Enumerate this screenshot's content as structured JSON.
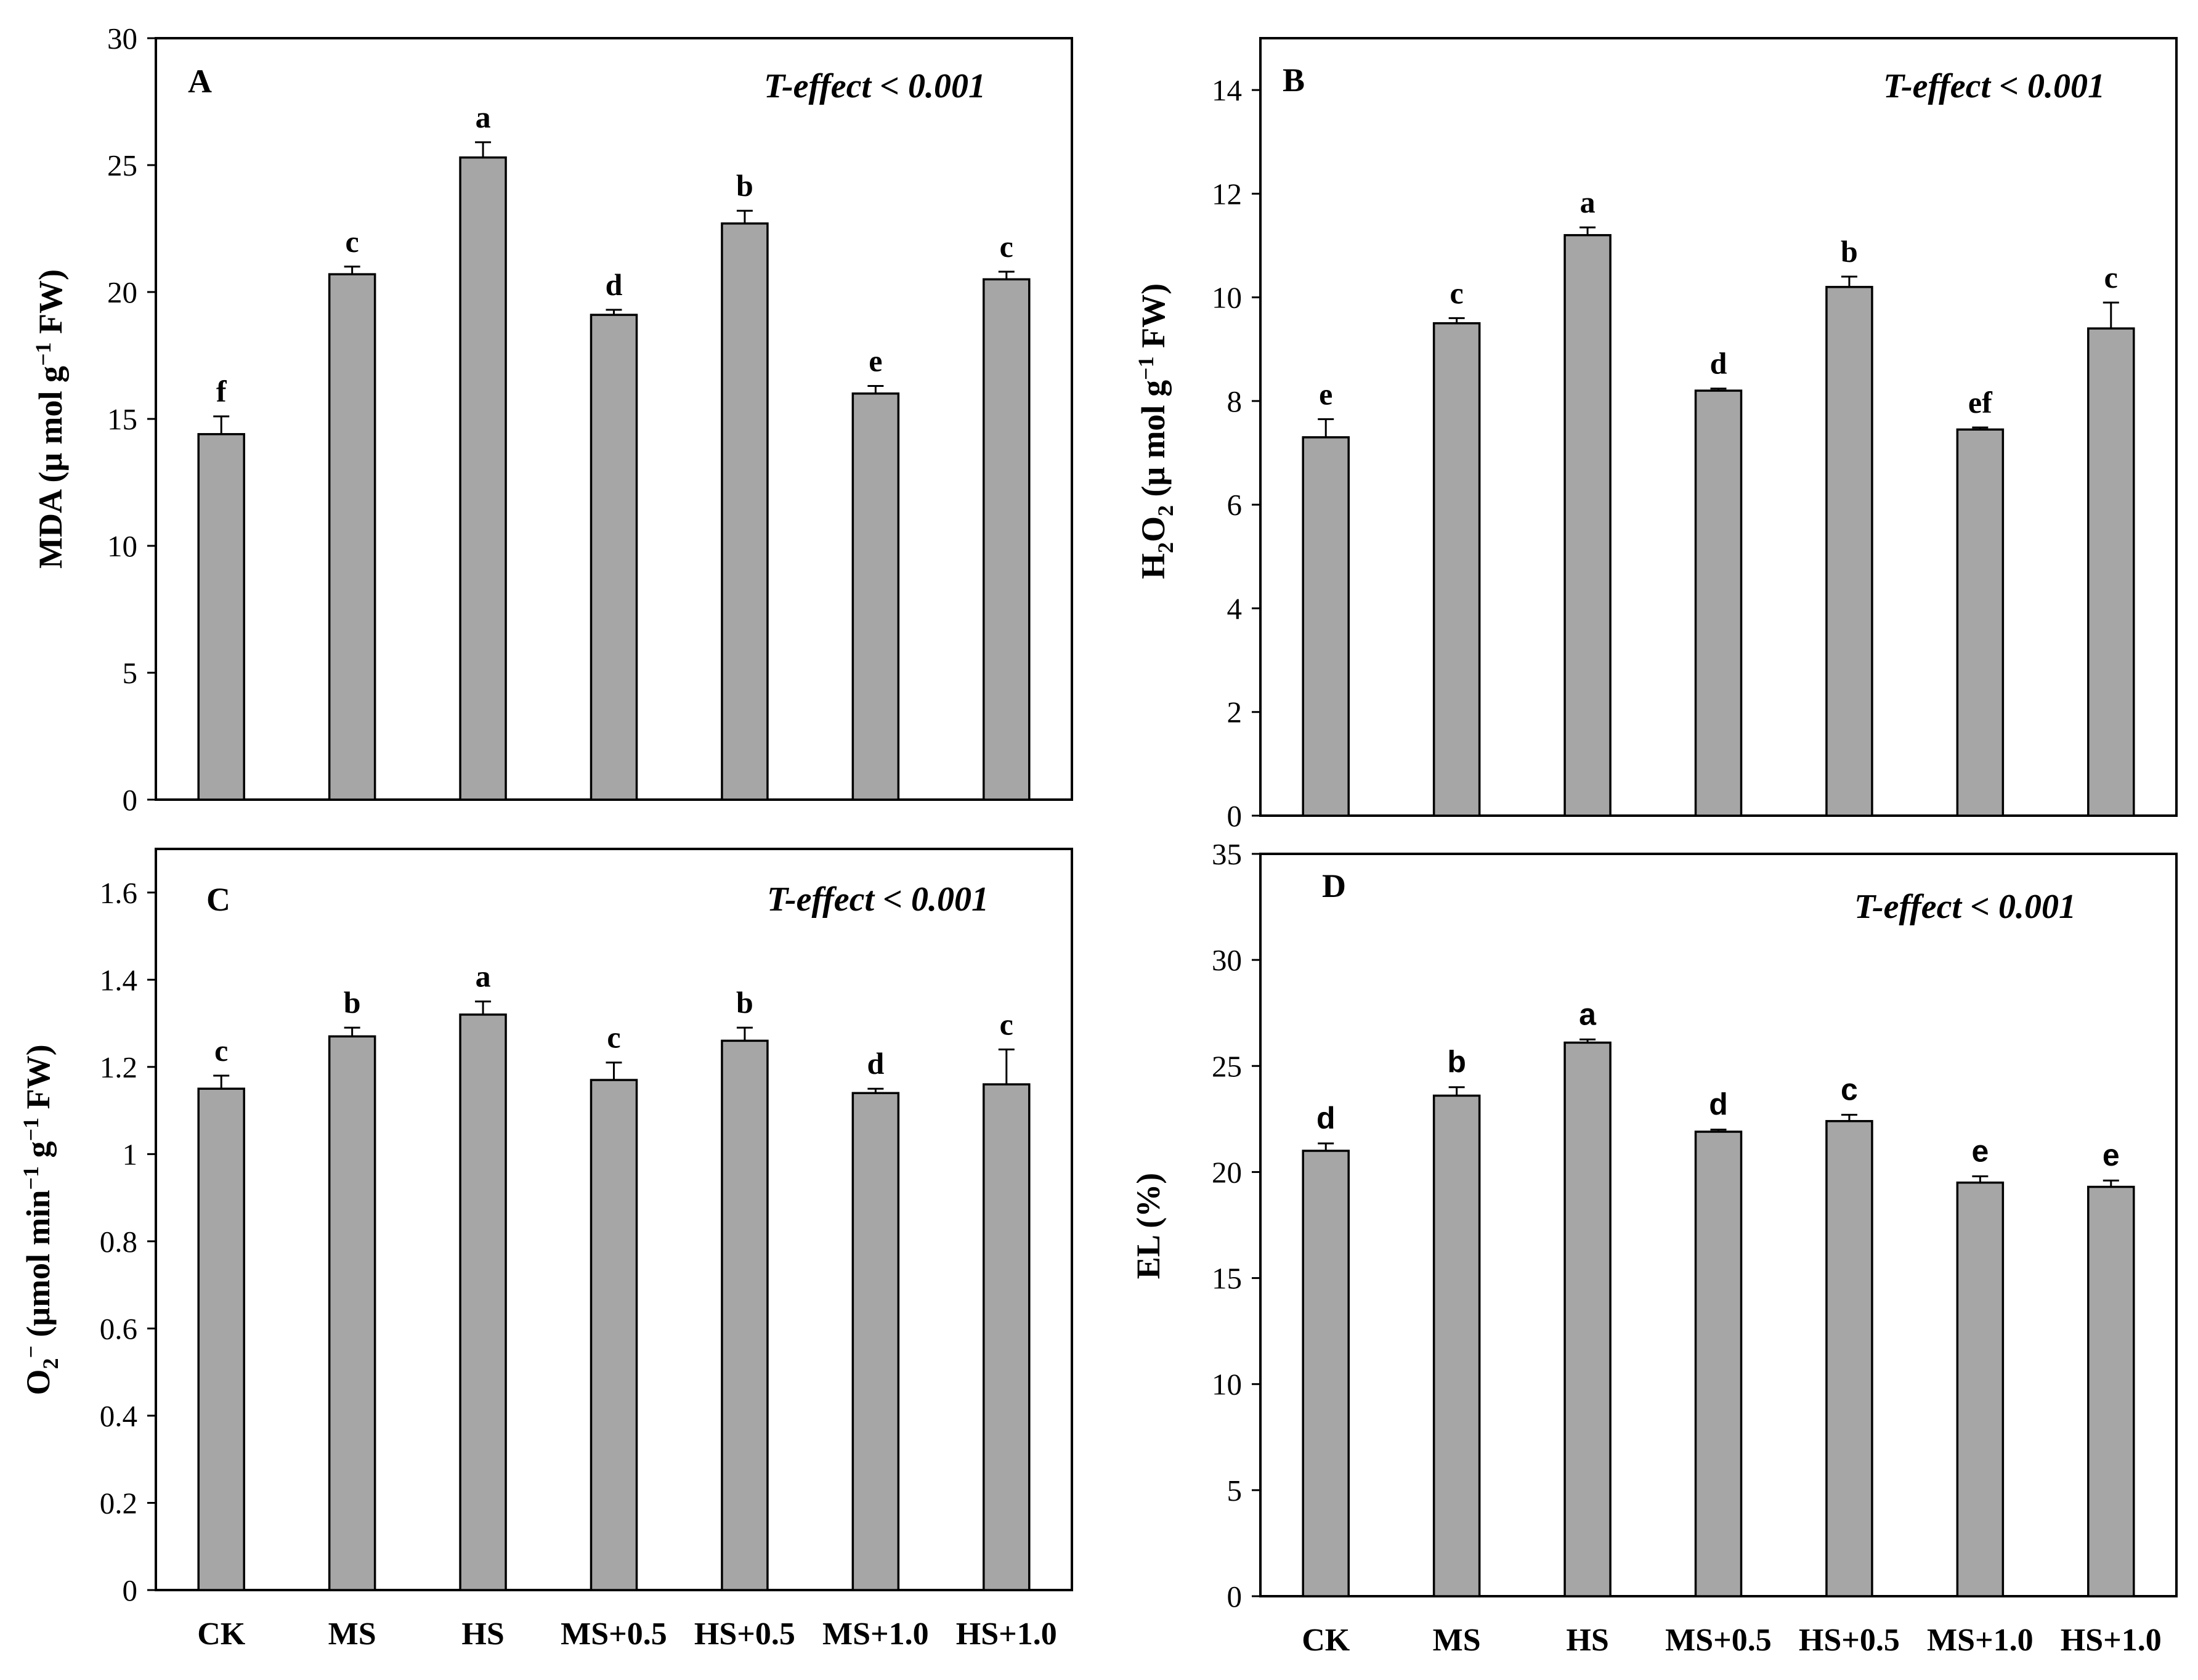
{
  "colors": {
    "bar": "#a6a6a6",
    "stroke": "#000000",
    "background": "#ffffff"
  },
  "chart_data": [
    {
      "type": "bar",
      "panel": "A",
      "annotation": "T-effect < 0.001",
      "ylabel": {
        "base": "MDA (μ mol g",
        "sup": "−1",
        "tail": " FW)"
      },
      "categories": [
        "CK",
        "MS",
        "HS",
        "MS+0.5",
        "HS+0.5",
        "MS+1.0",
        "HS+1.0"
      ],
      "values": [
        14.4,
        20.7,
        25.3,
        19.1,
        22.7,
        16.0,
        20.5
      ],
      "errors": [
        0.7,
        0.3,
        0.6,
        0.2,
        0.5,
        0.3,
        0.3
      ],
      "letters": [
        "f",
        "c",
        "a",
        "d",
        "b",
        "e",
        "c"
      ],
      "ylim": [
        0,
        30
      ],
      "yticks": [
        0,
        5,
        10,
        15,
        20,
        25,
        30
      ],
      "ytick_labels": [
        "0",
        "5",
        "10",
        "15",
        "20",
        "25",
        "30"
      ],
      "show_xticks": false,
      "legend": "none",
      "grid": false
    },
    {
      "type": "bar",
      "panel": "B",
      "annotation": "T-effect < 0.001",
      "ylabel": {
        "base": "H",
        "sub1": "2",
        "mid": "O",
        "sub2": "2",
        "rest": " (μ mol g",
        "sup": "−1",
        "tail": " FW)"
      },
      "categories": [
        "CK",
        "MS",
        "HS",
        "MS+0.5",
        "HS+0.5",
        "MS+1.0",
        "HS+1.0"
      ],
      "values": [
        7.3,
        9.5,
        11.2,
        8.2,
        10.2,
        7.45,
        9.4
      ],
      "errors": [
        0.35,
        0.1,
        0.15,
        0.04,
        0.2,
        0.04,
        0.5
      ],
      "letters": [
        "e",
        "c",
        "a",
        "d",
        "b",
        "ef",
        "c"
      ],
      "ylim": [
        0,
        15
      ],
      "yticks": [
        0,
        2,
        4,
        6,
        8,
        10,
        12,
        14
      ],
      "ytick_labels": [
        "0",
        "2",
        "4",
        "6",
        "8",
        "10",
        "12",
        "14"
      ],
      "show_xticks": false,
      "legend": "none",
      "grid": false
    },
    {
      "type": "bar",
      "panel": "C",
      "annotation": "T-effect < 0.001",
      "ylabel": {
        "base": "O",
        "sub": "2",
        "sup": "−",
        "rest": " (μmol min",
        "sup2": "−1",
        "mid": " g",
        "sup3": "−1",
        "tail": " FW)"
      },
      "categories": [
        "CK",
        "MS",
        "HS",
        "MS+0.5",
        "HS+0.5",
        "MS+1.0",
        "HS+1.0"
      ],
      "values": [
        1.15,
        1.27,
        1.32,
        1.17,
        1.26,
        1.14,
        1.16
      ],
      "errors": [
        0.03,
        0.02,
        0.03,
        0.04,
        0.03,
        0.01,
        0.08
      ],
      "letters": [
        "c",
        "b",
        "a",
        "c",
        "b",
        "d",
        "c"
      ],
      "ylim": [
        0,
        1.7
      ],
      "yticks": [
        0,
        0.2,
        0.4,
        0.6,
        0.8,
        1.0,
        1.2,
        1.4,
        1.6
      ],
      "ytick_labels": [
        "0",
        "0.2",
        "0.4",
        "0.6",
        "0.8",
        "1",
        "1.2",
        "1.4",
        "1.6"
      ],
      "show_xticks": true,
      "legend": "none",
      "grid": false
    },
    {
      "type": "bar",
      "panel": "D",
      "annotation": "T-effect < 0.001",
      "ylabel": {
        "text": "EL (%)"
      },
      "categories": [
        "CK",
        "MS",
        "HS",
        "MS+0.5",
        "HS+0.5",
        "MS+1.0",
        "HS+1.0"
      ],
      "values": [
        21.0,
        23.6,
        26.1,
        21.9,
        22.4,
        19.5,
        19.3
      ],
      "errors": [
        0.35,
        0.4,
        0.15,
        0.1,
        0.3,
        0.3,
        0.3
      ],
      "letters": [
        "d",
        "b",
        "a",
        "d",
        "c",
        "e",
        "e"
      ],
      "ylim": [
        0,
        35
      ],
      "yticks": [
        0,
        5,
        10,
        15,
        20,
        25,
        30,
        35
      ],
      "ytick_labels": [
        "0",
        "5",
        "10",
        "15",
        "20",
        "25",
        "30",
        "35"
      ],
      "show_xticks": true,
      "legend": "none",
      "grid": false
    }
  ]
}
